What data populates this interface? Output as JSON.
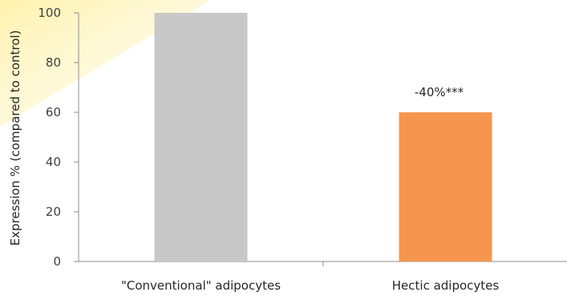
{
  "chart_data": {
    "type": "bar",
    "categories": [
      "\"Conventional\" adipocytes",
      "Hectic adipocytes"
    ],
    "values": [
      100,
      60
    ],
    "colors": [
      "#c8c8c8",
      "#f6964e"
    ],
    "data_labels": [
      "",
      "-40%***"
    ],
    "ylabel": "Expression % (compared to control)",
    "xlabel": "",
    "ylim": [
      0,
      100
    ],
    "yticks": [
      0,
      20,
      40,
      60,
      80,
      100
    ],
    "grid": false,
    "decor_highlight_color": "#fff4b8"
  }
}
